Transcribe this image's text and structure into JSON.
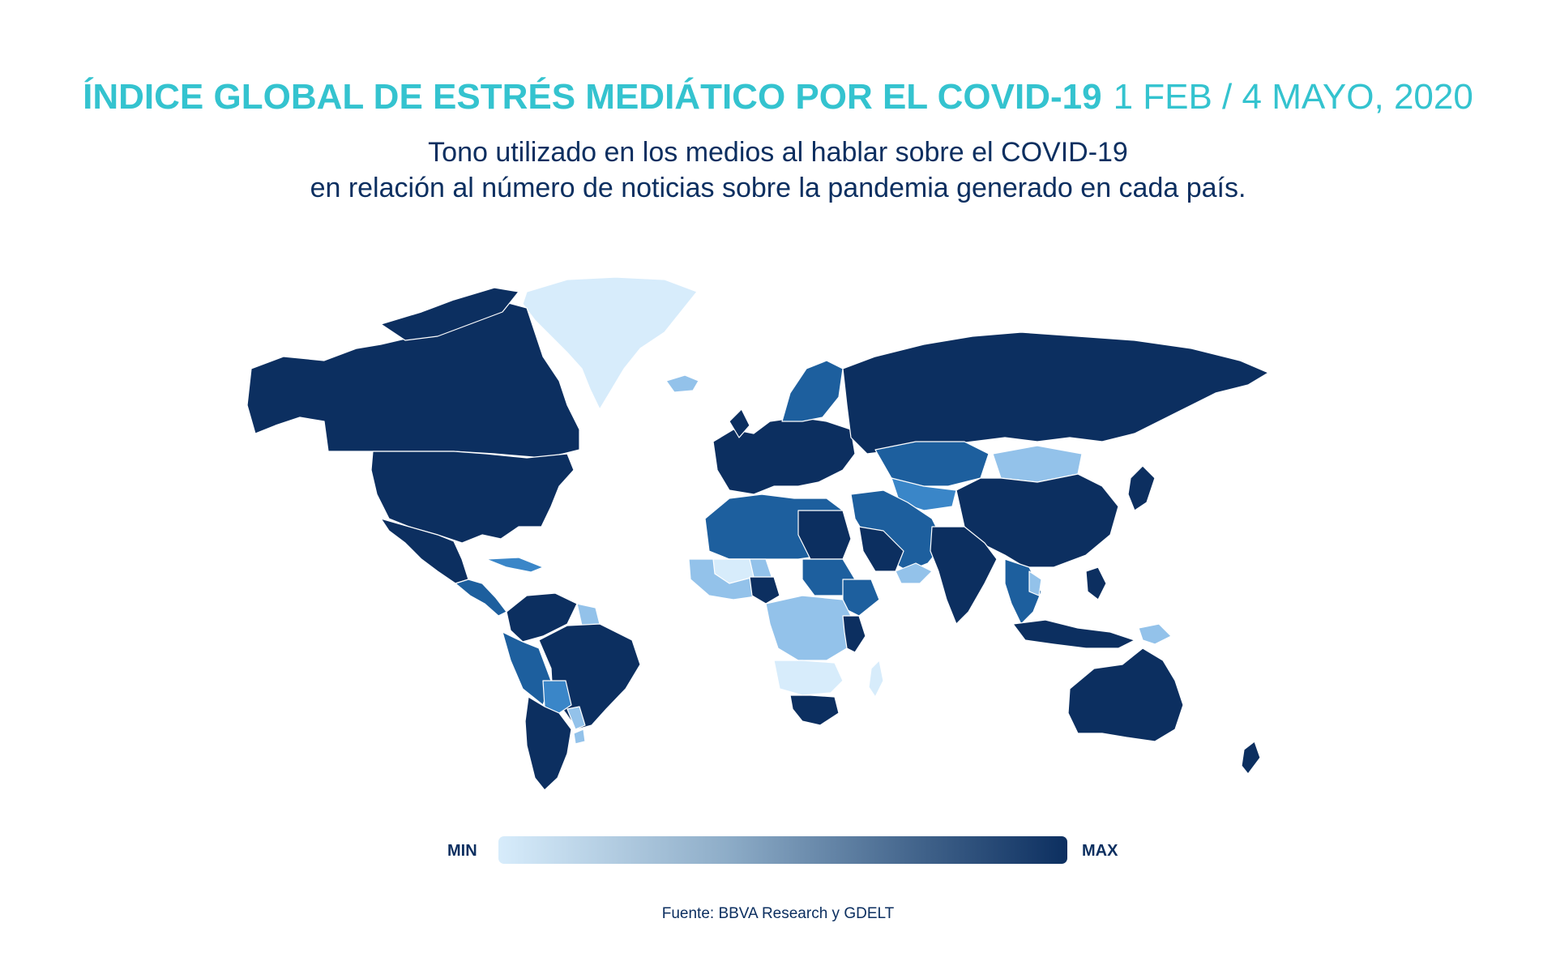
{
  "title": {
    "main": "ÍNDICE GLOBAL DE ESTRÉS MEDIÁTICO POR EL COVID-19",
    "date_range": "1 FEB / 4 MAYO, 2020"
  },
  "subtitle": {
    "line1": "Tono utilizado en los medios al hablar sobre el COVID-19",
    "line2": "en relación al número de noticias sobre la pandemia generado en cada país."
  },
  "legend": {
    "min_label": "MIN",
    "max_label": "MAX",
    "color_min": "#d7ecfb",
    "color_max": "#0c2f60"
  },
  "source": "Fuente: BBVA Research y GDELT",
  "colors": {
    "title": "#34c3cf",
    "text": "#0c2f60",
    "level_max": "#0c2f60",
    "level_high": "#1d5f9e",
    "level_mid": "#3a86c8",
    "level_low": "#93c2ea",
    "level_min": "#d7ecfb"
  }
}
